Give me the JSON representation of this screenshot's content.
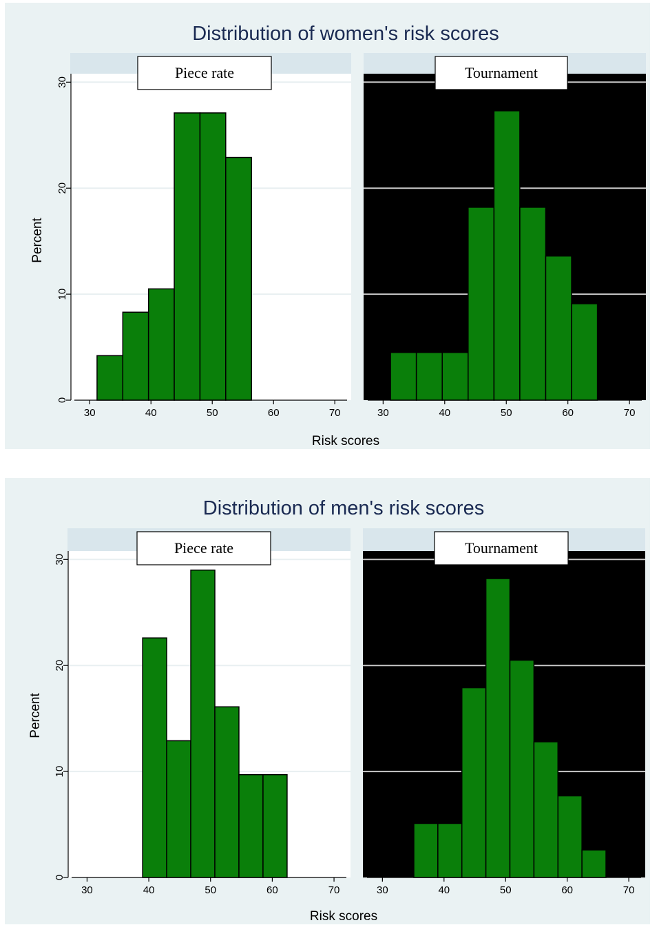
{
  "colors": {
    "figure_bg": "#eaf2f3",
    "strip_bg": "#d9e6ec",
    "piece_plot_bg": "#ffffff",
    "tournament_plot_bg": "#000000",
    "bar_fill": "#0a7f0a",
    "bar_stroke": "#000000",
    "title_color": "#1a2a52",
    "grid_light": "#e8eff1",
    "grid_dark": "#c8c8c8"
  },
  "chart_data": [
    {
      "type": "bar",
      "title": "Distribution of women's risk scores",
      "xlabel": "Risk scores",
      "ylabel": "Percent",
      "xlim": [
        27.5,
        72
      ],
      "ylim": [
        0,
        30.8
      ],
      "xticks": [
        "30",
        "40",
        "50",
        "60",
        "70"
      ],
      "yticks": [
        "0",
        "10",
        "20",
        "30"
      ],
      "grid": true,
      "panels": [
        {
          "name": "Piece rate",
          "bins": [
            {
              "x0": 31.2,
              "x1": 35.4,
              "value": 4.2
            },
            {
              "x0": 35.4,
              "x1": 39.6,
              "value": 8.3
            },
            {
              "x0": 39.6,
              "x1": 43.8,
              "value": 10.5
            },
            {
              "x0": 43.8,
              "x1": 48.0,
              "value": 27.1
            },
            {
              "x0": 48.0,
              "x1": 52.2,
              "value": 27.1
            },
            {
              "x0": 52.2,
              "x1": 56.4,
              "value": 22.9
            }
          ]
        },
        {
          "name": "Tournament",
          "bins": [
            {
              "x0": 31.2,
              "x1": 35.4,
              "value": 4.5
            },
            {
              "x0": 35.4,
              "x1": 39.6,
              "value": 4.5
            },
            {
              "x0": 39.6,
              "x1": 43.8,
              "value": 4.5
            },
            {
              "x0": 43.8,
              "x1": 48.0,
              "value": 18.2
            },
            {
              "x0": 48.0,
              "x1": 52.2,
              "value": 27.3
            },
            {
              "x0": 52.2,
              "x1": 56.4,
              "value": 18.2
            },
            {
              "x0": 56.4,
              "x1": 60.6,
              "value": 13.6
            },
            {
              "x0": 60.6,
              "x1": 64.8,
              "value": 9.1
            }
          ]
        }
      ]
    },
    {
      "type": "bar",
      "title": "Distribution of men's risk scores",
      "xlabel": "Risk scores",
      "ylabel": "Percent",
      "xlim": [
        27.5,
        72
      ],
      "ylim": [
        0,
        30.8
      ],
      "xticks": [
        "30",
        "40",
        "50",
        "60",
        "70"
      ],
      "yticks": [
        "0",
        "10",
        "20",
        "30"
      ],
      "grid": true,
      "panels": [
        {
          "name": "Piece rate",
          "bins": [
            {
              "x0": 39.0,
              "x1": 42.9,
              "value": 22.6
            },
            {
              "x0": 42.9,
              "x1": 46.8,
              "value": 12.9
            },
            {
              "x0": 46.8,
              "x1": 50.7,
              "value": 29.0
            },
            {
              "x0": 50.7,
              "x1": 54.6,
              "value": 16.1
            },
            {
              "x0": 54.6,
              "x1": 58.5,
              "value": 9.7
            },
            {
              "x0": 58.5,
              "x1": 62.4,
              "value": 9.7
            }
          ]
        },
        {
          "name": "Tournament",
          "bins": [
            {
              "x0": 35.1,
              "x1": 39.0,
              "value": 5.1
            },
            {
              "x0": 39.0,
              "x1": 42.9,
              "value": 5.1
            },
            {
              "x0": 42.9,
              "x1": 46.8,
              "value": 17.9
            },
            {
              "x0": 46.8,
              "x1": 50.7,
              "value": 28.2
            },
            {
              "x0": 50.7,
              "x1": 54.6,
              "value": 20.5
            },
            {
              "x0": 54.6,
              "x1": 58.5,
              "value": 12.8
            },
            {
              "x0": 58.5,
              "x1": 62.4,
              "value": 7.7
            },
            {
              "x0": 62.4,
              "x1": 66.3,
              "value": 2.6
            }
          ]
        }
      ]
    }
  ]
}
